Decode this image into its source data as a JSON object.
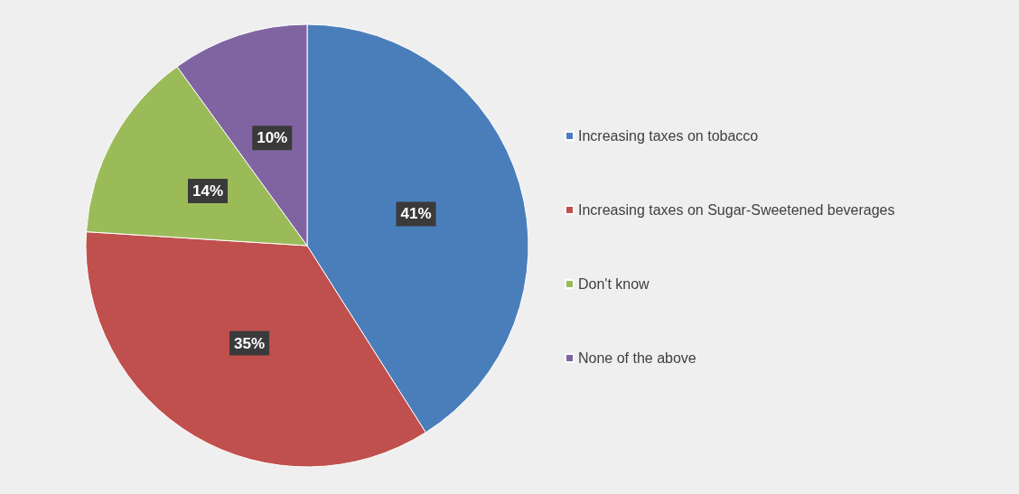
{
  "chart_data": {
    "type": "pie",
    "categories": [
      "Increasing taxes on tobacco",
      "Increasing taxes on Sugar-Sweetened beverages",
      "Don't know",
      "None of the above"
    ],
    "values": [
      41,
      35,
      14,
      10
    ],
    "colors": [
      "#4a7ebb",
      "#c0504d",
      "#9bbb59",
      "#8064a2"
    ],
    "value_labels": [
      "41%",
      "35%",
      "14%",
      "10%"
    ],
    "legend": "right"
  }
}
